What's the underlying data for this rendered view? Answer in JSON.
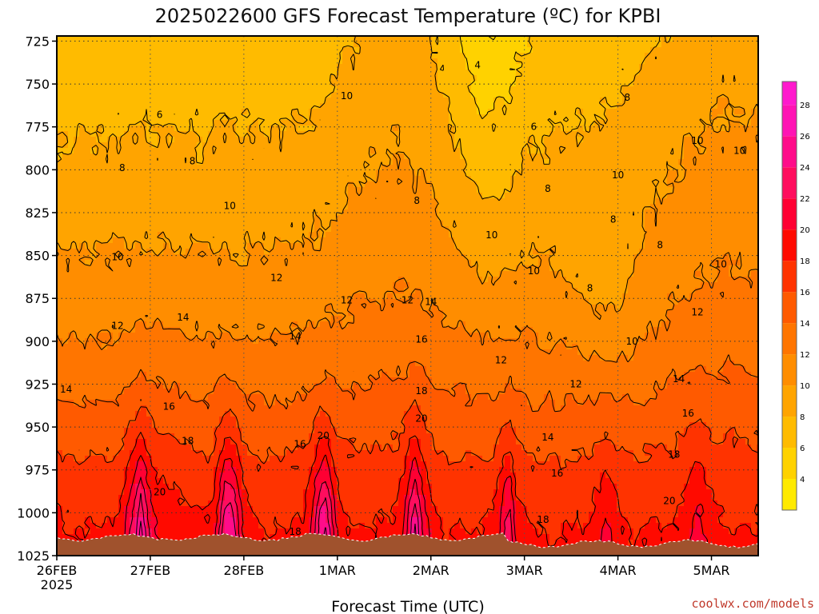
{
  "chart_data": {
    "type": "heatmap",
    "title": "2025022600 GFS Forecast Temperature (ºC) for KPBI",
    "xlabel": "Forecast Time (UTC)",
    "ylabel": "",
    "credit": "coolwx.com/models",
    "x_ticks": [
      {
        "label": "26FEB",
        "sublabel": "2025",
        "day": 0
      },
      {
        "label": "27FEB",
        "day": 1
      },
      {
        "label": "28FEB",
        "day": 2
      },
      {
        "label": "1MAR",
        "day": 3
      },
      {
        "label": "2MAR",
        "day": 4
      },
      {
        "label": "3MAR",
        "day": 5
      },
      {
        "label": "4MAR",
        "day": 6
      },
      {
        "label": "5MAR",
        "day": 7
      }
    ],
    "xlim_days": [
      0,
      7.5
    ],
    "y_ticks": [
      725,
      750,
      775,
      800,
      825,
      850,
      875,
      900,
      925,
      950,
      975,
      1000,
      1025
    ],
    "ylim": [
      722,
      1025
    ],
    "y_axis_reversed": true,
    "colorbar": {
      "levels": [
        2,
        4,
        6,
        8,
        10,
        12,
        14,
        16,
        18,
        20,
        22,
        24,
        26,
        28
      ],
      "colors": [
        "#ffff00",
        "#ffea00",
        "#ffd200",
        "#ffbb00",
        "#ffa400",
        "#ff8d00",
        "#ff7500",
        "#ff5a00",
        "#ff3300",
        "#ff0a00",
        "#ff0033",
        "#ff0d5e",
        "#ff0c8a",
        "#ff14b4",
        "#ff1acd"
      ],
      "min": 2,
      "max": 29.5
    },
    "contour_labels": [
      {
        "text": "4",
        "day": 4.5,
        "p": 739
      },
      {
        "text": "6",
        "day": 1.1,
        "p": 768
      },
      {
        "text": "6",
        "day": 5.1,
        "p": 775
      },
      {
        "text": "8",
        "day": 0.7,
        "p": 799
      },
      {
        "text": "8",
        "day": 1.45,
        "p": 795
      },
      {
        "text": "8",
        "day": 3.85,
        "p": 818
      },
      {
        "text": "8",
        "day": 5.25,
        "p": 811
      },
      {
        "text": "8",
        "day": 6.1,
        "p": 758
      },
      {
        "text": "8",
        "day": 5.7,
        "p": 869
      },
      {
        "text": "8",
        "day": 5.95,
        "p": 829
      },
      {
        "text": "8",
        "day": 6.45,
        "p": 844
      },
      {
        "text": "10",
        "day": 3.1,
        "p": 757
      },
      {
        "text": "10",
        "day": 1.85,
        "p": 821
      },
      {
        "text": "10",
        "day": 0.65,
        "p": 851
      },
      {
        "text": "10",
        "day": 4.65,
        "p": 838
      },
      {
        "text": "10",
        "day": 5.1,
        "p": 859
      },
      {
        "text": "10",
        "day": 6.0,
        "p": 803
      },
      {
        "text": "10",
        "day": 6.85,
        "p": 783
      },
      {
        "text": "10",
        "day": 7.3,
        "p": 789
      },
      {
        "text": "10",
        "day": 7.1,
        "p": 855
      },
      {
        "text": "10",
        "day": 6.15,
        "p": 900
      },
      {
        "text": "12",
        "day": 0.65,
        "p": 891
      },
      {
        "text": "12",
        "day": 2.35,
        "p": 863
      },
      {
        "text": "12",
        "day": 3.1,
        "p": 876
      },
      {
        "text": "12",
        "day": 3.75,
        "p": 876
      },
      {
        "text": "12",
        "day": 4.75,
        "p": 911
      },
      {
        "text": "12",
        "day": 5.55,
        "p": 925
      },
      {
        "text": "12",
        "day": 6.85,
        "p": 883
      },
      {
        "text": "14",
        "day": 0.1,
        "p": 928
      },
      {
        "text": "14",
        "day": 1.35,
        "p": 886
      },
      {
        "text": "14",
        "day": 2.55,
        "p": 897
      },
      {
        "text": "14",
        "day": 4.0,
        "p": 877
      },
      {
        "text": "14",
        "day": 5.25,
        "p": 956
      },
      {
        "text": "14",
        "day": 6.65,
        "p": 922
      },
      {
        "text": "16",
        "day": 1.2,
        "p": 938
      },
      {
        "text": "16",
        "day": 3.9,
        "p": 899
      },
      {
        "text": "16",
        "day": 2.6,
        "p": 960
      },
      {
        "text": "16",
        "day": 5.35,
        "p": 977
      },
      {
        "text": "16",
        "day": 6.75,
        "p": 942
      },
      {
        "text": "18",
        "day": 1.4,
        "p": 958
      },
      {
        "text": "18",
        "day": 3.9,
        "p": 929
      },
      {
        "text": "18",
        "day": 2.55,
        "p": 1011
      },
      {
        "text": "18",
        "day": 5.2,
        "p": 1004
      },
      {
        "text": "18",
        "day": 6.6,
        "p": 966
      },
      {
        "text": "20",
        "day": 1.1,
        "p": 988
      },
      {
        "text": "20",
        "day": 2.85,
        "p": 955
      },
      {
        "text": "20",
        "day": 3.9,
        "p": 945
      },
      {
        "text": "20",
        "day": 6.55,
        "p": 993
      }
    ]
  }
}
